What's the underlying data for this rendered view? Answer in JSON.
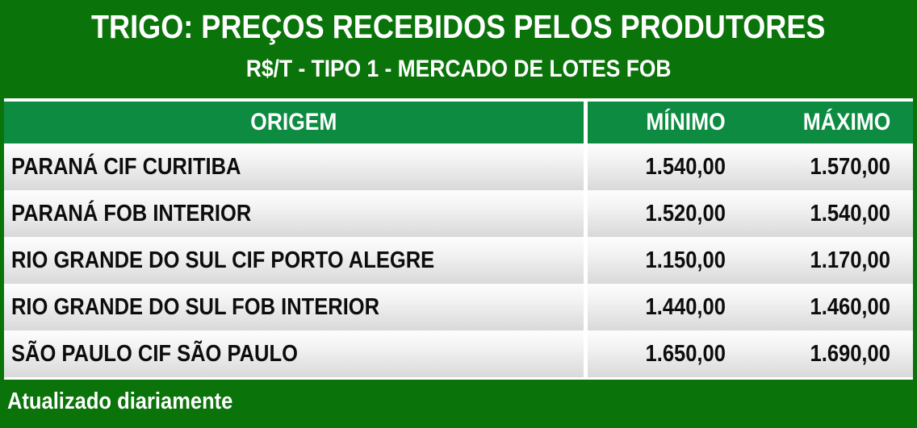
{
  "header": {
    "title": "TRIGO: PREÇOS RECEBIDOS PELOS PRODUTORES",
    "subtitle": "R$/T - TIPO 1 - MERCADO DE LOTES FOB"
  },
  "table": {
    "columns": {
      "origin": "ORIGEM",
      "min": "MÍNIMO",
      "max": "MÁXIMO"
    },
    "rows": [
      {
        "origin": "PARANÁ CIF CURITIBA",
        "min": "1.540,00",
        "max": "1.570,00"
      },
      {
        "origin": "PARANÁ FOB INTERIOR",
        "min": "1.520,00",
        "max": "1.540,00"
      },
      {
        "origin": "RIO GRANDE DO SUL CIF PORTO ALEGRE",
        "min": "1.150,00",
        "max": "1.170,00"
      },
      {
        "origin": "RIO GRANDE DO SUL FOB INTERIOR",
        "min": "1.440,00",
        "max": "1.460,00"
      },
      {
        "origin": "SÃO PAULO CIF SÃO PAULO",
        "min": "1.650,00",
        "max": "1.690,00"
      }
    ]
  },
  "footer": {
    "note": "Atualizado diariamente"
  },
  "colors": {
    "dark_green": "#0a730a",
    "table_header_green": "#0c8b41",
    "row_gradient_top": "#fdfdfd",
    "row_gradient_bottom": "#d9d9d9",
    "text_dark": "#0d0d0d",
    "text_light": "#ffffff"
  },
  "chart_data": {
    "type": "table",
    "title": "TRIGO: PREÇOS RECEBIDOS PELOS PRODUTORES",
    "subtitle": "R$/T - TIPO 1 - MERCADO DE LOTES FOB",
    "columns": [
      "ORIGEM",
      "MÍNIMO",
      "MÁXIMO"
    ],
    "rows": [
      [
        "PARANÁ CIF CURITIBA",
        "1.540,00",
        "1.570,00"
      ],
      [
        "PARANÁ FOB INTERIOR",
        "1.520,00",
        "1.540,00"
      ],
      [
        "RIO GRANDE DO SUL CIF PORTO ALEGRE",
        "1.150,00",
        "1.170,00"
      ],
      [
        "RIO GRANDE DO SUL FOB INTERIOR",
        "1.440,00",
        "1.460,00"
      ],
      [
        "SÃO PAULO CIF SÃO PAULO",
        "1.650,00",
        "1.690,00"
      ]
    ],
    "values_numeric": [
      {
        "origin": "PARANÁ CIF CURITIBA",
        "min": 1540.0,
        "max": 1570.0
      },
      {
        "origin": "PARANÁ FOB INTERIOR",
        "min": 1520.0,
        "max": 1540.0
      },
      {
        "origin": "RIO GRANDE DO SUL CIF PORTO ALEGRE",
        "min": 1150.0,
        "max": 1170.0
      },
      {
        "origin": "RIO GRANDE DO SUL FOB INTERIOR",
        "min": 1440.0,
        "max": 1460.0
      },
      {
        "origin": "SÃO PAULO CIF SÃO PAULO",
        "min": 1650.0,
        "max": 1690.0
      }
    ],
    "unit": "R$/T",
    "footer": "Atualizado diariamente"
  }
}
